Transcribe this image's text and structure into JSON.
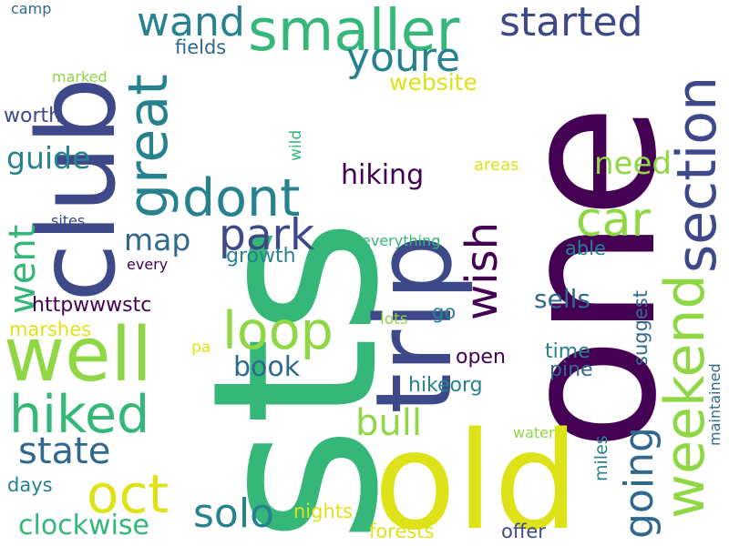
{
  "palette": {
    "dark_purple": "#440154",
    "indigo": "#3e4989",
    "slate_blue": "#31688e",
    "teal": "#26828e",
    "green": "#35b779",
    "light_green": "#8fd744",
    "yellow": "#dde318",
    "background": "#ffffff"
  },
  "words": [
    {
      "key": "sts",
      "text": "sts",
      "color": "#35b779",
      "vertical": true
    },
    {
      "key": "one",
      "text": "one",
      "color": "#440154",
      "vertical": true
    },
    {
      "key": "club",
      "text": "club",
      "color": "#3e4989",
      "vertical": true
    },
    {
      "key": "trip",
      "text": "trip",
      "color": "#3e4989",
      "vertical": true
    },
    {
      "key": "old",
      "text": "old",
      "color": "#dde318",
      "vertical": false
    },
    {
      "key": "well",
      "text": "well",
      "color": "#8fd744",
      "vertical": false
    },
    {
      "key": "smaller",
      "text": "smaller",
      "color": "#35b779",
      "vertical": false
    },
    {
      "key": "great",
      "text": "great",
      "color": "#26828e",
      "vertical": true
    },
    {
      "key": "section",
      "text": "section",
      "color": "#3e4989",
      "vertical": true
    },
    {
      "key": "weekend",
      "text": "weekend",
      "color": "#8fd744",
      "vertical": true
    },
    {
      "key": "dont",
      "text": "dont",
      "color": "#26828e",
      "vertical": false
    },
    {
      "key": "loop",
      "text": "loop",
      "color": "#8fd744",
      "vertical": false
    },
    {
      "key": "hiked",
      "text": "hiked",
      "color": "#35b779",
      "vertical": false
    },
    {
      "key": "wand",
      "text": "wand",
      "color": "#26828e",
      "vertical": false
    },
    {
      "key": "started",
      "text": "started",
      "color": "#3e4989",
      "vertical": false
    },
    {
      "key": "youre",
      "text": "youre",
      "color": "#26828e",
      "vertical": false
    },
    {
      "key": "car",
      "text": "car",
      "color": "#8fd744",
      "vertical": false
    },
    {
      "key": "wish",
      "text": "wish",
      "color": "#440154",
      "vertical": true
    },
    {
      "key": "park",
      "text": "park",
      "color": "#3e4989",
      "vertical": false
    },
    {
      "key": "oct",
      "text": "oct",
      "color": "#dde318",
      "vertical": false
    },
    {
      "key": "state",
      "text": "state",
      "color": "#31688e",
      "vertical": false
    },
    {
      "key": "went",
      "text": "went",
      "color": "#35b779",
      "vertical": true
    },
    {
      "key": "solo",
      "text": "solo",
      "color": "#26828e",
      "vertical": false
    },
    {
      "key": "going",
      "text": "going",
      "color": "#31688e",
      "vertical": true
    },
    {
      "key": "bull",
      "text": "bull",
      "color": "#8fd744",
      "vertical": false
    },
    {
      "key": "need",
      "text": "need",
      "color": "#8fd744",
      "vertical": false
    },
    {
      "key": "guide",
      "text": "guide",
      "color": "#26828e",
      "vertical": false
    },
    {
      "key": "map",
      "text": "map",
      "color": "#31688e",
      "vertical": false
    },
    {
      "key": "book",
      "text": "book",
      "color": "#31688e",
      "vertical": false
    },
    {
      "key": "clockwise",
      "text": "clockwise",
      "color": "#35b779",
      "vertical": false
    },
    {
      "key": "hiking",
      "text": "hiking",
      "color": "#440154",
      "vertical": false
    },
    {
      "key": "website",
      "text": "website",
      "color": "#dde318",
      "vertical": false
    },
    {
      "key": "sells",
      "text": "sells",
      "color": "#31688e",
      "vertical": false
    },
    {
      "key": "httpwwwstc",
      "text": "httpwwwstc",
      "color": "#440154",
      "vertical": false
    },
    {
      "key": "worth",
      "text": "worth",
      "color": "#3e4989",
      "vertical": false
    },
    {
      "key": "fields",
      "text": "fields",
      "color": "#31688e",
      "vertical": false
    },
    {
      "key": "growth",
      "text": "growth",
      "color": "#26828e",
      "vertical": false
    },
    {
      "key": "open",
      "text": "open",
      "color": "#440154",
      "vertical": false
    },
    {
      "key": "hikeorg",
      "text": "hikeorg",
      "color": "#26828e",
      "vertical": false
    },
    {
      "key": "time",
      "text": "time",
      "color": "#26828e",
      "vertical": false
    },
    {
      "key": "pine",
      "text": "pine",
      "color": "#31688e",
      "vertical": false
    },
    {
      "key": "nights",
      "text": "nights",
      "color": "#dde318",
      "vertical": false
    },
    {
      "key": "forests",
      "text": "forests",
      "color": "#dde318",
      "vertical": false
    },
    {
      "key": "offer",
      "text": "offer",
      "color": "#3e4989",
      "vertical": false
    },
    {
      "key": "marshes",
      "text": "marshes",
      "color": "#dde318",
      "vertical": false
    },
    {
      "key": "days",
      "text": "days",
      "color": "#26828e",
      "vertical": false
    },
    {
      "key": "areas",
      "text": "areas",
      "color": "#dde318",
      "vertical": false
    },
    {
      "key": "able",
      "text": "able",
      "color": "#26828e",
      "vertical": false
    },
    {
      "key": "suggest",
      "text": "suggest",
      "color": "#31688e",
      "vertical": true
    },
    {
      "key": "miles",
      "text": "miles",
      "color": "#26828e",
      "vertical": true
    },
    {
      "key": "maintained",
      "text": "maintained",
      "color": "#31688e",
      "vertical": true
    },
    {
      "key": "wild",
      "text": "wild",
      "color": "#35b779",
      "vertical": true
    },
    {
      "key": "go",
      "text": "go",
      "color": "#26828e",
      "vertical": false
    },
    {
      "key": "lots",
      "text": "lots",
      "color": "#8fd744",
      "vertical": false
    },
    {
      "key": "everything",
      "text": "everything",
      "color": "#35b779",
      "vertical": false
    },
    {
      "key": "sites",
      "text": "sites",
      "color": "#3e4989",
      "vertical": false
    },
    {
      "key": "every",
      "text": "every",
      "color": "#440154",
      "vertical": false
    },
    {
      "key": "marked",
      "text": "marked",
      "color": "#8fd744",
      "vertical": false
    },
    {
      "key": "camp",
      "text": "camp",
      "color": "#31688e",
      "vertical": false
    },
    {
      "key": "water",
      "text": "water",
      "color": "#8fd744",
      "vertical": false
    },
    {
      "key": "pa",
      "text": "pa",
      "color": "#dde318",
      "vertical": false
    }
  ]
}
